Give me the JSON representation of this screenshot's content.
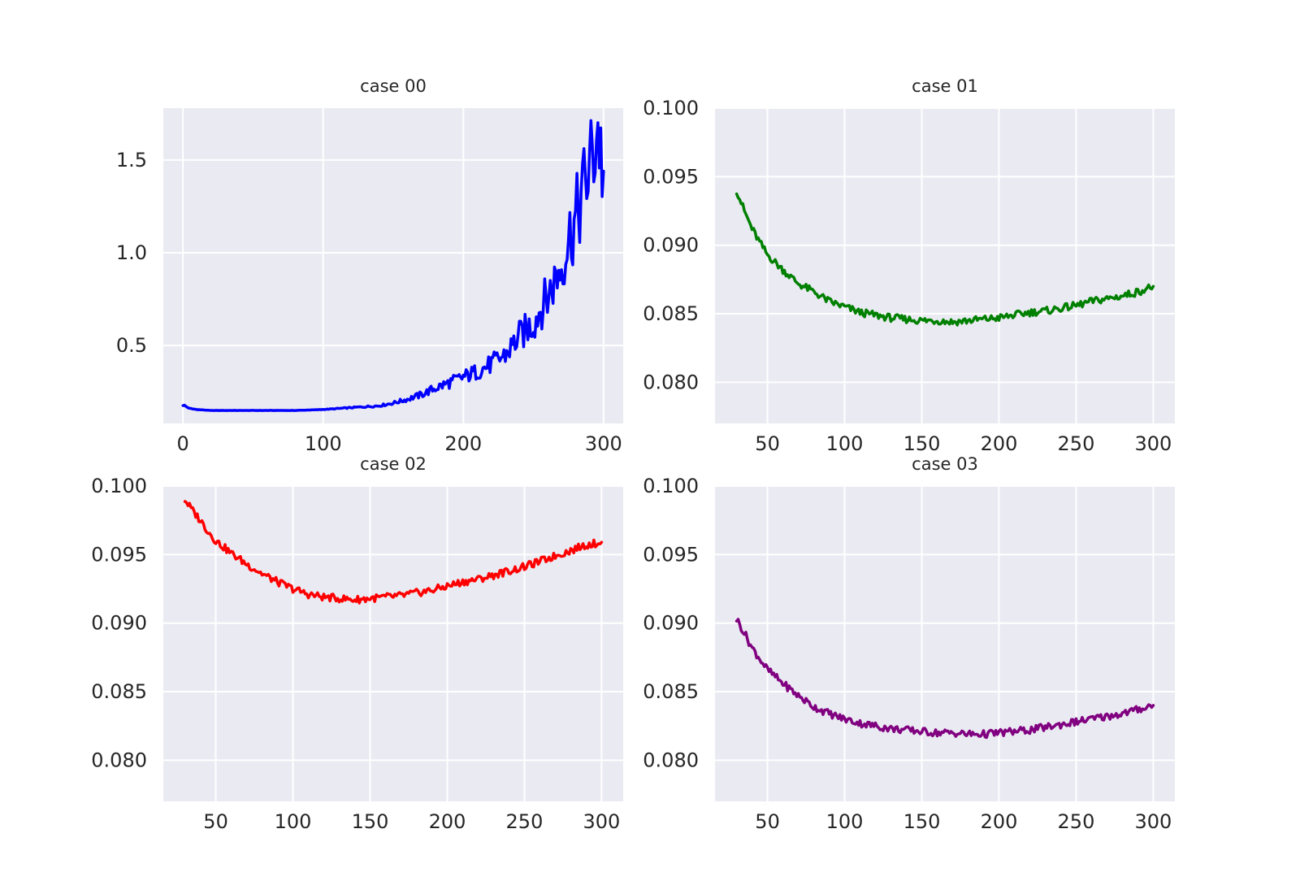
{
  "chart_data": [
    {
      "type": "line",
      "title": "case 00",
      "color": "#0000ff",
      "xlim": [
        -14,
        314
      ],
      "ylim": [
        0.08,
        1.78
      ],
      "xticks": [
        0,
        100,
        200,
        300
      ],
      "yticks": [
        0.5,
        1.0,
        1.5
      ],
      "ytick_labels": [
        "0.5",
        "1.0",
        "1.5"
      ],
      "grid": true,
      "series": [
        {
          "x": [
            0,
            5,
            10,
            20,
            40,
            60,
            80,
            100,
            120,
            140,
            150,
            160,
            170,
            180,
            190,
            200,
            210,
            220,
            230,
            240,
            250,
            255,
            260,
            265,
            270,
            275,
            280,
            285,
            290,
            293,
            296,
            299,
            300
          ],
          "values": [
            0.18,
            0.16,
            0.155,
            0.15,
            0.15,
            0.15,
            0.15,
            0.155,
            0.165,
            0.175,
            0.19,
            0.21,
            0.235,
            0.27,
            0.3,
            0.33,
            0.36,
            0.4,
            0.45,
            0.55,
            0.62,
            0.7,
            0.76,
            0.85,
            0.93,
            1.08,
            1.17,
            1.32,
            1.46,
            1.55,
            1.68,
            1.47,
            1.44
          ]
        }
      ]
    },
    {
      "type": "line",
      "title": "case 01",
      "color": "#008000",
      "xlim": [
        16,
        314
      ],
      "ylim": [
        0.077,
        0.1
      ],
      "xticks": [
        50,
        100,
        150,
        200,
        250,
        300
      ],
      "yticks": [
        0.08,
        0.085,
        0.09,
        0.095,
        0.1
      ],
      "ytick_labels": [
        "0.080",
        "0.085",
        "0.090",
        "0.095",
        "0.100"
      ],
      "grid": true,
      "series": [
        {
          "x": [
            30,
            35,
            40,
            45,
            50,
            60,
            70,
            80,
            90,
            100,
            110,
            120,
            130,
            140,
            150,
            160,
            170,
            180,
            190,
            200,
            210,
            220,
            230,
            240,
            250,
            260,
            270,
            280,
            290,
            300
          ],
          "values": [
            0.094,
            0.0925,
            0.0912,
            0.0902,
            0.0893,
            0.0882,
            0.0872,
            0.0866,
            0.0859,
            0.0855,
            0.0851,
            0.0849,
            0.0847,
            0.0846,
            0.0845,
            0.0845,
            0.0844,
            0.0845,
            0.0846,
            0.0847,
            0.0849,
            0.0851,
            0.0852,
            0.0854,
            0.0856,
            0.0859,
            0.0861,
            0.0863,
            0.0866,
            0.087
          ]
        }
      ]
    },
    {
      "type": "line",
      "title": "case 02",
      "color": "#ff0000",
      "xlim": [
        16,
        314
      ],
      "ylim": [
        0.077,
        0.1
      ],
      "xticks": [
        50,
        100,
        150,
        200,
        250,
        300
      ],
      "yticks": [
        0.08,
        0.085,
        0.09,
        0.095,
        0.1
      ],
      "ytick_labels": [
        "0.080",
        "0.085",
        "0.090",
        "0.095",
        "0.100"
      ],
      "grid": true,
      "series": [
        {
          "x": [
            30,
            35,
            40,
            45,
            50,
            60,
            70,
            80,
            90,
            100,
            110,
            120,
            130,
            140,
            150,
            160,
            170,
            180,
            190,
            200,
            210,
            220,
            230,
            240,
            250,
            260,
            270,
            280,
            290,
            300
          ],
          "values": [
            0.099,
            0.0982,
            0.0975,
            0.0967,
            0.096,
            0.0951,
            0.0943,
            0.0936,
            0.093,
            0.0925,
            0.0921,
            0.0919,
            0.0918,
            0.0917,
            0.0918,
            0.0919,
            0.092,
            0.0922,
            0.0924,
            0.0927,
            0.093,
            0.0932,
            0.0935,
            0.0938,
            0.0941,
            0.0945,
            0.0949,
            0.0953,
            0.0957,
            0.0959
          ]
        }
      ]
    },
    {
      "type": "line",
      "title": "case 03",
      "color": "#800080",
      "xlim": [
        16,
        314
      ],
      "ylim": [
        0.077,
        0.1
      ],
      "xticks": [
        50,
        100,
        150,
        200,
        250,
        300
      ],
      "yticks": [
        0.08,
        0.085,
        0.09,
        0.095,
        0.1
      ],
      "ytick_labels": [
        "0.080",
        "0.085",
        "0.090",
        "0.095",
        "0.100"
      ],
      "grid": true,
      "series": [
        {
          "x": [
            30,
            35,
            40,
            45,
            50,
            60,
            70,
            80,
            90,
            100,
            110,
            120,
            130,
            140,
            150,
            160,
            170,
            180,
            190,
            200,
            210,
            220,
            230,
            240,
            250,
            260,
            270,
            280,
            290,
            300
          ],
          "values": [
            0.0903,
            0.0893,
            0.0882,
            0.0874,
            0.0866,
            0.0856,
            0.0847,
            0.0839,
            0.0834,
            0.083,
            0.0827,
            0.0825,
            0.0823,
            0.0822,
            0.0821,
            0.082,
            0.082,
            0.0819,
            0.0819,
            0.082,
            0.0821,
            0.0822,
            0.0824,
            0.0826,
            0.0828,
            0.083,
            0.0832,
            0.0834,
            0.0837,
            0.084
          ]
        }
      ]
    }
  ]
}
